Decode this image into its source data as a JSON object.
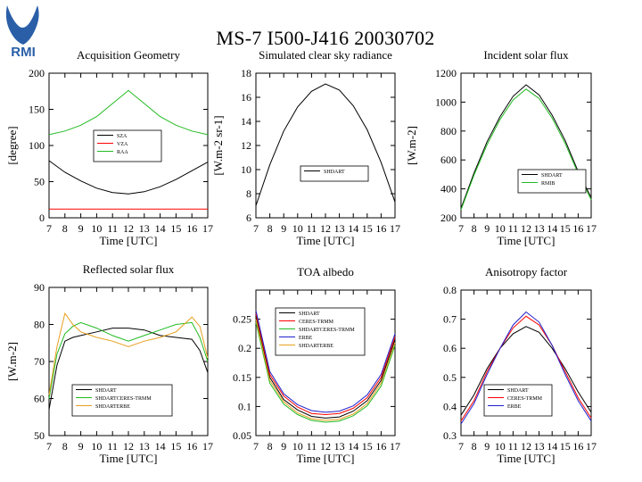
{
  "page": {
    "title": "MS-7 I500-J416 20030702",
    "logo_text": "RMI",
    "logo_color": "#2a5fa8"
  },
  "chart_data": [
    {
      "type": "line",
      "title": "Acquisition Geometry",
      "xlabel": "Time [UTC]",
      "ylabel": "[degree]",
      "xlim": [
        7,
        17
      ],
      "ylim": [
        0,
        200
      ],
      "xticks": [
        7,
        8,
        9,
        10,
        11,
        12,
        13,
        14,
        15,
        16,
        17
      ],
      "yticks": [
        0,
        50,
        100,
        150,
        200
      ],
      "legend_position": "center-left",
      "series": [
        {
          "name": "SZA",
          "color": "#000000",
          "x": [
            7,
            8,
            9,
            10,
            11,
            12,
            13,
            14,
            15,
            16,
            17
          ],
          "y": [
            79,
            63,
            51,
            41,
            35,
            33,
            36,
            43,
            53,
            65,
            77
          ]
        },
        {
          "name": "VZA",
          "color": "#ff0000",
          "x": [
            7,
            8,
            9,
            10,
            11,
            12,
            13,
            14,
            15,
            16,
            17
          ],
          "y": [
            12,
            12,
            12,
            12,
            12,
            12,
            12,
            12,
            12,
            12,
            12
          ]
        },
        {
          "name": "RAA",
          "color": "#22bb22",
          "x": [
            7,
            8,
            9,
            10,
            11,
            12,
            13,
            14,
            15,
            16,
            17
          ],
          "y": [
            115,
            120,
            128,
            140,
            158,
            176,
            158,
            140,
            128,
            120,
            115
          ]
        }
      ]
    },
    {
      "type": "line",
      "title": "Simulated clear sky radiance",
      "xlabel": "Time [UTC]",
      "ylabel": "[W.m-2 sr-1]",
      "xlim": [
        7,
        17
      ],
      "ylim": [
        6,
        18
      ],
      "xticks": [
        7,
        8,
        9,
        10,
        11,
        12,
        13,
        14,
        15,
        16,
        17
      ],
      "yticks": [
        6,
        8,
        10,
        12,
        14,
        16,
        18
      ],
      "legend_position": "center-right",
      "series": [
        {
          "name": "SHDART",
          "color": "#000000",
          "x": [
            7,
            8,
            9,
            10,
            11,
            12,
            13,
            14,
            15,
            16,
            17
          ],
          "y": [
            7,
            10.4,
            13.2,
            15.2,
            16.5,
            17.1,
            16.6,
            15.3,
            13.3,
            10.6,
            7.3
          ]
        }
      ]
    },
    {
      "type": "line",
      "title": "Incident solar flux",
      "xlabel": "Time [UTC]",
      "ylabel": "[W.m-2]",
      "xlim": [
        7,
        17
      ],
      "ylim": [
        200,
        1200
      ],
      "xticks": [
        7,
        8,
        9,
        10,
        11,
        12,
        13,
        14,
        15,
        16,
        17
      ],
      "yticks": [
        200,
        400,
        600,
        800,
        1000,
        1200
      ],
      "legend_position": "bottom-right",
      "series": [
        {
          "name": "SHDART",
          "color": "#000000",
          "x": [
            7,
            8,
            9,
            10,
            11,
            12,
            13,
            14,
            15,
            16,
            17
          ],
          "y": [
            265,
            510,
            725,
            900,
            1040,
            1120,
            1050,
            910,
            735,
            520,
            340
          ]
        },
        {
          "name": "RMIB",
          "color": "#22bb22",
          "x": [
            7,
            8,
            9,
            10,
            11,
            12,
            13,
            14,
            15,
            16,
            17
          ],
          "y": [
            255,
            495,
            705,
            880,
            1015,
            1090,
            1025,
            890,
            715,
            505,
            325
          ]
        }
      ]
    },
    {
      "type": "line",
      "title": "Reflected solar flux",
      "xlabel": "Time [UTC]",
      "ylabel": "[W.m-2]",
      "xlim": [
        7,
        17
      ],
      "ylim": [
        50,
        90
      ],
      "xticks": [
        7,
        8,
        9,
        10,
        11,
        12,
        13,
        14,
        15,
        16,
        17
      ],
      "yticks": [
        50,
        60,
        70,
        80,
        90
      ],
      "legend_position": "bottom-left",
      "series": [
        {
          "name": "SHDART",
          "color": "#000000",
          "x": [
            7,
            7.5,
            8,
            8.5,
            9,
            10,
            11,
            12,
            13,
            14,
            15,
            16,
            16.5,
            17
          ],
          "y": [
            57,
            69,
            75.5,
            76.5,
            77,
            78,
            79,
            79,
            78.5,
            77,
            76.5,
            76,
            73,
            67
          ]
        },
        {
          "name": "SHDARTCERES-TRMM",
          "color": "#22bb22",
          "x": [
            7,
            7.5,
            8,
            8.5,
            9,
            10,
            11,
            12,
            13,
            14,
            15,
            16,
            16.5,
            17
          ],
          "y": [
            60,
            72,
            77.5,
            79.5,
            80.5,
            79,
            77,
            75.5,
            77,
            78.5,
            80,
            80.5,
            76.5,
            70
          ]
        },
        {
          "name": "SHDARTERBE",
          "color": "#e8a020",
          "x": [
            7,
            7.5,
            8,
            8.5,
            9,
            10,
            11,
            12,
            13,
            14,
            15,
            16,
            16.5,
            17
          ],
          "y": [
            61,
            74,
            83,
            80,
            78,
            76.5,
            75.5,
            74,
            75.5,
            76.5,
            78,
            82,
            79.5,
            71
          ]
        }
      ]
    },
    {
      "type": "line",
      "title": "TOA albedo",
      "xlabel": "Time [UTC]",
      "ylabel": "",
      "xlim": [
        7,
        17
      ],
      "ylim": [
        0.05,
        0.3
      ],
      "xticks": [
        7,
        8,
        9,
        10,
        11,
        12,
        13,
        14,
        15,
        16,
        17
      ],
      "yticks": [
        0.05,
        0.1,
        0.15,
        0.2,
        0.25
      ],
      "legend_position": "top-left",
      "series": [
        {
          "name": "SHDART",
          "color": "#000000",
          "x": [
            7,
            8,
            9,
            10,
            11,
            12,
            13,
            14,
            15,
            16,
            17
          ],
          "y": [
            0.255,
            0.15,
            0.112,
            0.094,
            0.083,
            0.08,
            0.082,
            0.092,
            0.11,
            0.145,
            0.215
          ]
        },
        {
          "name": "CERES-TRMM",
          "color": "#ff0000",
          "x": [
            7,
            8,
            9,
            10,
            11,
            12,
            13,
            14,
            15,
            16,
            17
          ],
          "y": [
            0.26,
            0.155,
            0.118,
            0.099,
            0.088,
            0.086,
            0.088,
            0.097,
            0.115,
            0.15,
            0.22
          ]
        },
        {
          "name": "SHDARTCERES-TRMM",
          "color": "#22bb22",
          "x": [
            7,
            8,
            9,
            10,
            11,
            12,
            13,
            14,
            15,
            16,
            17
          ],
          "y": [
            0.245,
            0.14,
            0.104,
            0.086,
            0.076,
            0.073,
            0.075,
            0.084,
            0.101,
            0.135,
            0.205
          ]
        },
        {
          "name": "ERBE",
          "color": "#2020cc",
          "x": [
            7,
            8,
            9,
            10,
            11,
            12,
            13,
            14,
            15,
            16,
            17
          ],
          "y": [
            0.265,
            0.16,
            0.122,
            0.103,
            0.093,
            0.09,
            0.092,
            0.101,
            0.12,
            0.155,
            0.225
          ]
        },
        {
          "name": "SHDARTERBE",
          "color": "#e8a020",
          "x": [
            7,
            8,
            9,
            10,
            11,
            12,
            13,
            14,
            15,
            16,
            17
          ],
          "y": [
            0.25,
            0.145,
            0.108,
            0.089,
            0.079,
            0.076,
            0.078,
            0.087,
            0.105,
            0.14,
            0.21
          ]
        }
      ]
    },
    {
      "type": "line",
      "title": "Anisotropy factor",
      "xlabel": "Time [UTC]",
      "ylabel": "",
      "xlim": [
        7,
        17
      ],
      "ylim": [
        0.3,
        0.8
      ],
      "xticks": [
        7,
        8,
        9,
        10,
        11,
        12,
        13,
        14,
        15,
        16,
        17
      ],
      "yticks": [
        0.3,
        0.4,
        0.5,
        0.6,
        0.7,
        0.8
      ],
      "legend_position": "bottom-left",
      "series": [
        {
          "name": "SHDART",
          "color": "#000000",
          "x": [
            7,
            8,
            9,
            10,
            11,
            12,
            13,
            14,
            15,
            16,
            17
          ],
          "y": [
            0.37,
            0.44,
            0.53,
            0.6,
            0.65,
            0.675,
            0.655,
            0.6,
            0.53,
            0.45,
            0.38
          ]
        },
        {
          "name": "CERES-TRMM",
          "color": "#ff0000",
          "x": [
            7,
            8,
            9,
            10,
            11,
            12,
            13,
            14,
            15,
            16,
            17
          ],
          "y": [
            0.35,
            0.42,
            0.52,
            0.6,
            0.67,
            0.71,
            0.68,
            0.61,
            0.52,
            0.43,
            0.36
          ]
        },
        {
          "name": "ERBE",
          "color": "#2020cc",
          "x": [
            7,
            8,
            9,
            10,
            11,
            12,
            13,
            14,
            15,
            16,
            17
          ],
          "y": [
            0.34,
            0.41,
            0.51,
            0.6,
            0.68,
            0.725,
            0.69,
            0.61,
            0.51,
            0.42,
            0.35
          ]
        }
      ]
    }
  ]
}
